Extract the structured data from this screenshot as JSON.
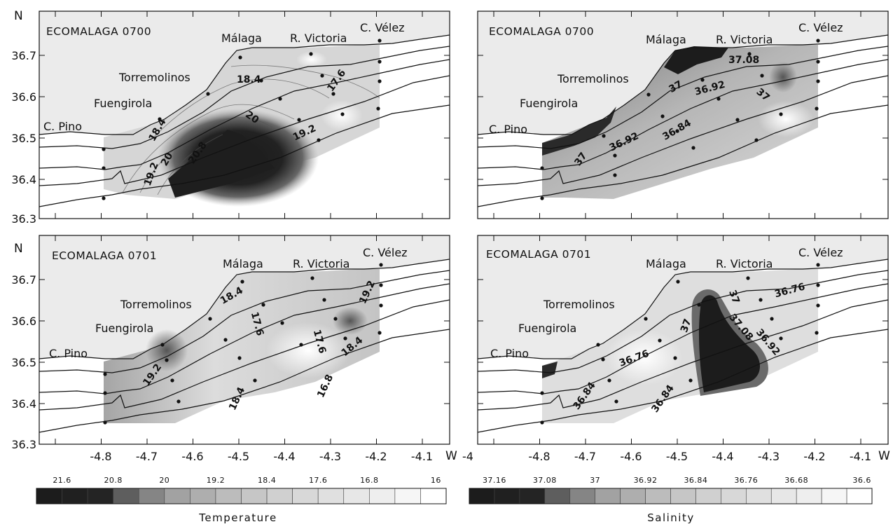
{
  "axes": {
    "lat_ticks": [
      "36.7",
      "36.6",
      "36.5",
      "36.4",
      "36.3"
    ],
    "lon_ticks": [
      "-4.8",
      "-4.7",
      "-4.6",
      "-4.5",
      "-4.4",
      "-4.3",
      "-4.2",
      "-4.1",
      "-4"
    ],
    "north_label": "N",
    "west_label": "W"
  },
  "panels": [
    {
      "id": "temp-0700",
      "title": "ECOMALAGA 0700",
      "variable": "Temperature",
      "places": [
        "Málaga",
        "R. Victoria",
        "C. Vélez",
        "Torremolinos",
        "Fuengirola",
        "C. Pino"
      ],
      "contour_labels": [
        "18.4",
        "17.6",
        "20",
        "19.2",
        "20.8",
        "18.4",
        "20",
        "19.2"
      ]
    },
    {
      "id": "sal-0700",
      "title": "ECOMALAGA 0700",
      "variable": "Salinity",
      "places": [
        "Málaga",
        "R. Victoria",
        "C. Vélez",
        "Torremolinos",
        "Fuengirola",
        "C. Pino"
      ],
      "contour_labels": [
        "37.08",
        "37",
        "36.92",
        "37",
        "36.84",
        "36.92",
        "37"
      ]
    },
    {
      "id": "temp-0701",
      "title": "ECOMALAGA 0701",
      "variable": "Temperature",
      "places": [
        "Málaga",
        "R. Victoria",
        "C. Vélez",
        "Torremolinos",
        "Fuengirola",
        "C. Pino"
      ],
      "contour_labels": [
        "18.4",
        "19.2",
        "17.6",
        "17.6",
        "18.4",
        "16.8",
        "18.4",
        "19.2"
      ]
    },
    {
      "id": "sal-0701",
      "title": "ECOMALAGA 0701",
      "variable": "Salinity",
      "places": [
        "Málaga",
        "R. Victoria",
        "C. Vélez",
        "Torremolinos",
        "Fuengirola",
        "C. Pino"
      ],
      "contour_labels": [
        "36.76",
        "37",
        "37",
        "37.08",
        "36.92",
        "36.76",
        "36.84",
        "36.84"
      ]
    }
  ],
  "colorbars": {
    "temperature": {
      "title": "Temperature",
      "ticks": [
        "21.6",
        "20.8",
        "20",
        "19.2",
        "18.4",
        "17.6",
        "16.8",
        "16"
      ],
      "colors": [
        "#1c1c1c",
        "#202020",
        "#242424",
        "#5e5e5e",
        "#858585",
        "#a2a2a2",
        "#aeaeae",
        "#bcbcbc",
        "#c6c6c6",
        "#d0d0d0",
        "#d8d8d8",
        "#e0e0e0",
        "#e7e7e7",
        "#eeeeee",
        "#f6f6f6",
        "#ffffff"
      ]
    },
    "salinity": {
      "title": "Salinity",
      "ticks": [
        "37.16",
        "37.08",
        "37",
        "36.92",
        "36.84",
        "36.76",
        "36.68",
        "36.6"
      ],
      "colors": [
        "#1c1c1c",
        "#202020",
        "#242424",
        "#5e5e5e",
        "#858585",
        "#a2a2a2",
        "#aeaeae",
        "#bcbcbc",
        "#c6c6c6",
        "#d0d0d0",
        "#d8d8d8",
        "#e0e0e0",
        "#e7e7e7",
        "#eeeeee",
        "#f6f6f6",
        "#ffffff"
      ]
    }
  }
}
